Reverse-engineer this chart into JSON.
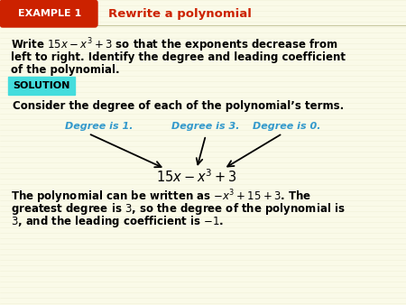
{
  "bg_color": "#fafae8",
  "header_bg": "#cc2200",
  "header_text": "EXAMPLE 1",
  "header_text_color": "#ffffff",
  "header_title": "Rewrite a polynomial",
  "header_title_color": "#cc2200",
  "solution_bg": "#44dddd",
  "solution_text": "SOLUTION",
  "body_text_color": "#000000",
  "degree_text_color": "#3399cc",
  "arrow_color": "#000000",
  "fig_w": 4.5,
  "fig_h": 3.38,
  "dpi": 100
}
